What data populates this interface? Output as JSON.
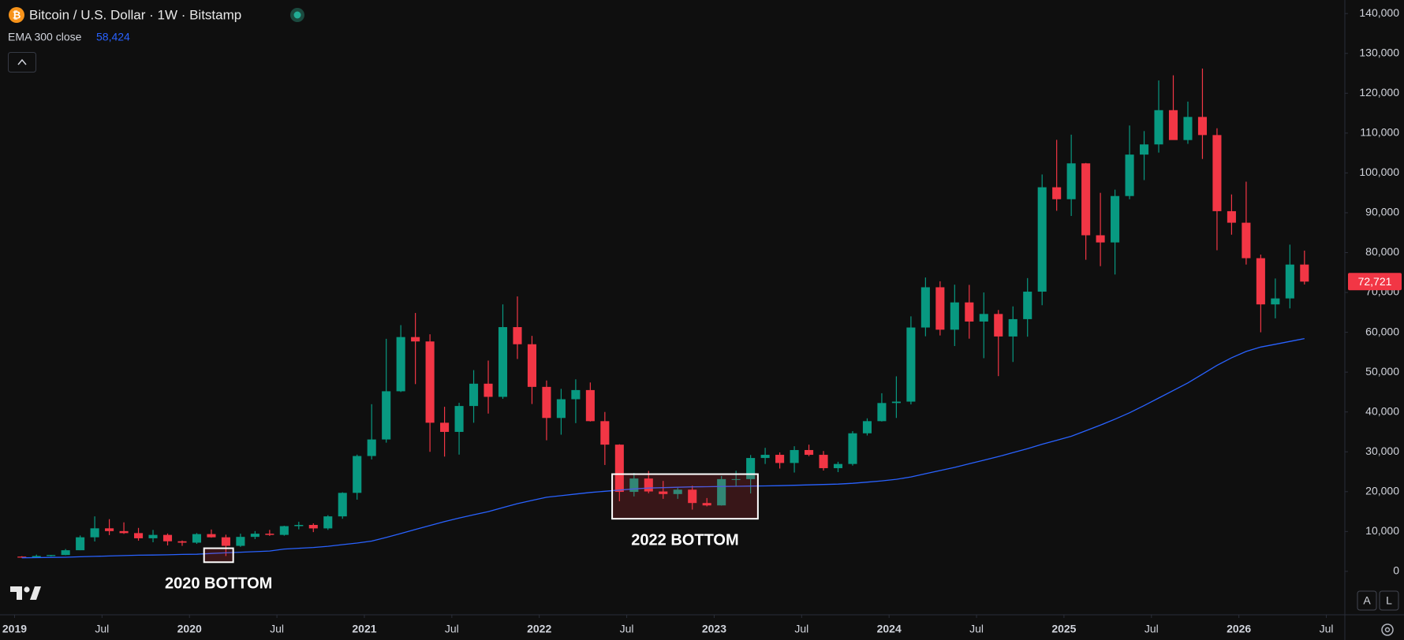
{
  "chart_data": {
    "type": "candlestick",
    "icon": "₿",
    "title": "Bitcoin / U.S. Dollar · 1W · Bitstamp",
    "up_color": "#089981",
    "down_color": "#f23645",
    "x": [
      "2019-01",
      "2019-02",
      "2019-03",
      "2019-04",
      "2019-05",
      "2019-06",
      "2019-07",
      "2019-08",
      "2019-09",
      "2019-10",
      "2019-11",
      "2019-12",
      "2020-01",
      "2020-02",
      "2020-03",
      "2020-04",
      "2020-05",
      "2020-06",
      "2020-07",
      "2020-08",
      "2020-09",
      "2020-10",
      "2020-11",
      "2020-12",
      "2021-01",
      "2021-02",
      "2021-03",
      "2021-04",
      "2021-05",
      "2021-06",
      "2021-07",
      "2021-08",
      "2021-09",
      "2021-10",
      "2021-11",
      "2021-12",
      "2022-01",
      "2022-02",
      "2022-03",
      "2022-04",
      "2022-05",
      "2022-06",
      "2022-07",
      "2022-08",
      "2022-09",
      "2022-10",
      "2022-11",
      "2022-12",
      "2023-01",
      "2023-02",
      "2023-03",
      "2023-04",
      "2023-05",
      "2023-06",
      "2023-07",
      "2023-08",
      "2023-09",
      "2023-10",
      "2023-11",
      "2023-12",
      "2024-01",
      "2024-02",
      "2024-03",
      "2024-04",
      "2024-05",
      "2024-06",
      "2024-07",
      "2024-08",
      "2024-09",
      "2024-10",
      "2024-11",
      "2024-12",
      "2025-01",
      "2025-02",
      "2025-03",
      "2025-04",
      "2025-05",
      "2025-06",
      "2025-07",
      "2025-08",
      "2025-09",
      "2025-10",
      "2025-11",
      "2025-12",
      "2026-01",
      "2026-02",
      "2026-03",
      "2026-04",
      "2026-05"
    ],
    "open": [
      3700,
      3450,
      3850,
      4100,
      5300,
      8550,
      10800,
      10100,
      9600,
      8300,
      9150,
      7550,
      7200,
      9350,
      8550,
      6400,
      8650,
      9450,
      9150,
      11350,
      11650,
      10780,
      13800,
      19700,
      28950,
      33100,
      45200,
      58800,
      57700,
      37300,
      35000,
      41500,
      47100,
      43800,
      61300,
      57000,
      46300,
      38500,
      43200,
      45500,
      37700,
      31800,
      19950,
      23300,
      20050,
      19400,
      20500,
      17150,
      16550,
      23150,
      23150,
      28450,
      29250,
      27200,
      30450,
      29250,
      25900,
      26950,
      34650,
      37700,
      42250,
      42600,
      61200,
      71300,
      60650,
      67500,
      62700,
      64600,
      58950,
      63300,
      70200,
      96400,
      93400,
      102400,
      84350,
      82550,
      94200,
      104600,
      107150,
      115750,
      108250,
      114050,
      109500,
      90400,
      87500,
      78600,
      67000,
      68500,
      77000
    ],
    "high": [
      3800,
      4200,
      4100,
      5600,
      9000,
      13800,
      13100,
      12300,
      10900,
      10400,
      9500,
      7750,
      9600,
      10500,
      9200,
      9450,
      10100,
      10400,
      11450,
      12450,
      12050,
      14100,
      19850,
      29300,
      41950,
      58350,
      61800,
      64850,
      59500,
      41300,
      42300,
      50500,
      52900,
      67000,
      69000,
      59100,
      47900,
      45800,
      48200,
      47400,
      40000,
      31900,
      24700,
      25200,
      22700,
      20950,
      21500,
      18400,
      23950,
      25250,
      29200,
      31000,
      29850,
      31400,
      31800,
      30200,
      27500,
      35200,
      38400,
      44700,
      48950,
      64000,
      73750,
      72800,
      71950,
      71900,
      70000,
      65600,
      66500,
      73600,
      99600,
      108300,
      109600,
      102500,
      95000,
      95800,
      111900,
      110500,
      123200,
      124500,
      117900,
      126200,
      111200,
      94600,
      97800,
      79500,
      73500,
      82000,
      80500
    ],
    "low": [
      3400,
      3400,
      3750,
      4050,
      5300,
      7500,
      9100,
      9400,
      7700,
      7300,
      6500,
      6400,
      6900,
      8450,
      3850,
      6150,
      8100,
      8900,
      8950,
      10550,
      9850,
      10400,
      13200,
      18000,
      28100,
      32300,
      45000,
      47000,
      30000,
      28800,
      29300,
      37300,
      39600,
      43300,
      53300,
      42000,
      32900,
      34300,
      37200,
      37600,
      26700,
      17600,
      18800,
      19600,
      18200,
      18200,
      15500,
      16300,
      16500,
      21350,
      19550,
      26950,
      25800,
      24800,
      28900,
      25300,
      24900,
      26550,
      34100,
      37600,
      38500,
      41900,
      59000,
      59200,
      56550,
      58400,
      53500,
      49000,
      52550,
      58900,
      66800,
      90500,
      89200,
      78200,
      76600,
      74500,
      93400,
      98200,
      105100,
      108700,
      107300,
      103500,
      80600,
      84500,
      77000,
      60000,
      63500,
      66000,
      72000
    ],
    "close": [
      3450,
      3850,
      4100,
      5300,
      8550,
      10800,
      10100,
      9600,
      8300,
      9150,
      7550,
      7200,
      9350,
      8550,
      6400,
      8650,
      9450,
      9150,
      11350,
      11650,
      10780,
      13800,
      19700,
      28950,
      33100,
      45200,
      58800,
      57700,
      37300,
      35000,
      41500,
      47100,
      43800,
      61300,
      57000,
      46300,
      38500,
      43200,
      45500,
      37700,
      31800,
      19950,
      23300,
      20050,
      19400,
      20500,
      17150,
      16550,
      23150,
      23150,
      28450,
      29250,
      27200,
      30450,
      29250,
      25900,
      26950,
      34650,
      37700,
      42250,
      42600,
      61200,
      71300,
      60650,
      67500,
      62700,
      64600,
      58950,
      63300,
      70200,
      96400,
      93400,
      102400,
      84350,
      82550,
      94200,
      104600,
      107150,
      115750,
      108250,
      114050,
      109500,
      90400,
      87500,
      78600,
      67000,
      68500,
      77000,
      72721
    ],
    "ema": {
      "name": "EMA 300 close",
      "color": "#2962ff",
      "last_label": {
        "value": 58424,
        "label": "58,424"
      },
      "values": [
        3400,
        3450,
        3500,
        3550,
        3650,
        3750,
        3850,
        3950,
        4050,
        4100,
        4150,
        4250,
        4300,
        4500,
        4650,
        4800,
        4950,
        5100,
        5600,
        5800,
        6000,
        6300,
        6700,
        7100,
        7600,
        8500,
        9500,
        10500,
        11500,
        12500,
        13400,
        14200,
        15000,
        16000,
        17000,
        17800,
        18600,
        19000,
        19400,
        19800,
        20100,
        20400,
        20700,
        20900,
        21000,
        21100,
        21200,
        21250,
        21300,
        21350,
        21400,
        21450,
        21500,
        21600,
        21700,
        21800,
        21900,
        22100,
        22400,
        22700,
        23100,
        23700,
        24500,
        25300,
        26100,
        27000,
        27900,
        28800,
        29800,
        30800,
        31900,
        32900,
        33900,
        35300,
        36700,
        38200,
        39800,
        41600,
        43500,
        45400,
        47300,
        49500,
        51700,
        53600,
        55200,
        56300,
        57000,
        57700,
        58424
      ]
    },
    "last_price": {
      "value": 72721,
      "label": "72,721"
    },
    "annotations": [
      {
        "text": "2020 BOTTOM",
        "x": [
          "2020-02",
          "2020-04"
        ],
        "y": [
          2300,
          5800
        ]
      },
      {
        "text": "2022 BOTTOM",
        "x": [
          "2022-06",
          "2023-04"
        ],
        "y": [
          13200,
          24400
        ]
      }
    ],
    "xlim": [
      "2018-12",
      "2026-08"
    ],
    "ylim": [
      -10900,
      143400
    ],
    "xticks": [
      {
        "value": "2019-01",
        "label": "2019"
      },
      {
        "value": "2019-07",
        "label": "Jul"
      },
      {
        "value": "2020-01",
        "label": "2020"
      },
      {
        "value": "2020-07",
        "label": "Jul"
      },
      {
        "value": "2021-01",
        "label": "2021"
      },
      {
        "value": "2021-07",
        "label": "Jul"
      },
      {
        "value": "2022-01",
        "label": "2022"
      },
      {
        "value": "2022-07",
        "label": "Jul"
      },
      {
        "value": "2023-01",
        "label": "2023"
      },
      {
        "value": "2023-07",
        "label": "Jul"
      },
      {
        "value": "2024-01",
        "label": "2024"
      },
      {
        "value": "2024-07",
        "label": "Jul"
      },
      {
        "value": "2025-01",
        "label": "2025"
      },
      {
        "value": "2025-07",
        "label": "Jul"
      },
      {
        "value": "2026-01",
        "label": "2026"
      },
      {
        "value": "2026-07",
        "label": "Jul"
      }
    ],
    "yticks": [
      0,
      {
        "value": 10000,
        "label": "10,000"
      },
      {
        "value": 20000,
        "label": "20,000"
      },
      {
        "value": 30000,
        "label": "30,000"
      },
      {
        "value": 40000,
        "label": "40,000"
      },
      {
        "value": 50000,
        "label": "50,000"
      },
      {
        "value": 60000,
        "label": "60,000"
      },
      {
        "value": 70000,
        "label": "70,000"
      },
      {
        "value": 80000,
        "label": "80,000"
      },
      {
        "value": 90000,
        "label": "90,000"
      },
      {
        "value": 100000,
        "label": "100,000"
      },
      {
        "value": 110000,
        "label": "110,000"
      },
      {
        "value": 120000,
        "label": "120,000"
      },
      {
        "value": 130000,
        "label": "130,000"
      },
      {
        "value": 140000,
        "label": "140,000"
      }
    ],
    "grid": false,
    "scale_buttons": [
      "A",
      "L"
    ]
  }
}
